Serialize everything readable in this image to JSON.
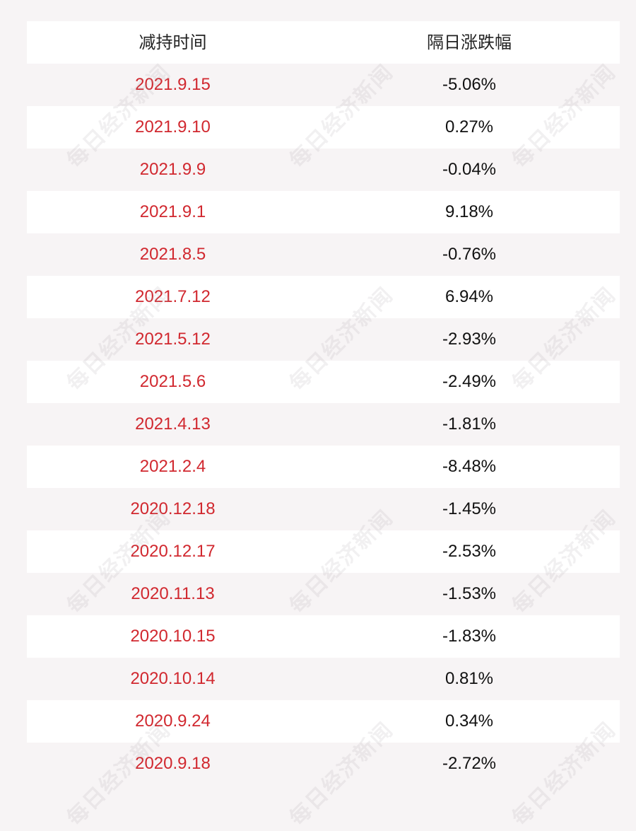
{
  "table": {
    "headers": {
      "date": "减持时间",
      "change": "隔日涨跌幅"
    },
    "rows": [
      {
        "date": "2021.9.15",
        "change": "-5.06%"
      },
      {
        "date": "2021.9.10",
        "change": "0.27%"
      },
      {
        "date": "2021.9.9",
        "change": "-0.04%"
      },
      {
        "date": "2021.9.1",
        "change": "9.18%"
      },
      {
        "date": "2021.8.5",
        "change": "-0.76%"
      },
      {
        "date": "2021.7.12",
        "change": "6.94%"
      },
      {
        "date": "2021.5.12",
        "change": "-2.93%"
      },
      {
        "date": "2021.5.6",
        "change": "-2.49%"
      },
      {
        "date": "2021.4.13",
        "change": "-1.81%"
      },
      {
        "date": "2021.2.4",
        "change": "-8.48%"
      },
      {
        "date": "2020.12.18",
        "change": "-1.45%"
      },
      {
        "date": "2020.12.17",
        "change": "-2.53%"
      },
      {
        "date": "2020.11.13",
        "change": "-1.53%"
      },
      {
        "date": "2020.10.15",
        "change": "-1.83%"
      },
      {
        "date": "2020.10.14",
        "change": "0.81%"
      },
      {
        "date": "2020.9.24",
        "change": "0.34%"
      },
      {
        "date": "2020.9.18",
        "change": "-2.72%"
      }
    ]
  },
  "watermark": {
    "text": "每日经济新闻"
  },
  "colors": {
    "date_text": "#d1282f",
    "change_text": "#111111",
    "row_white": "#ffffff",
    "row_tint": "#f7f4f5"
  }
}
